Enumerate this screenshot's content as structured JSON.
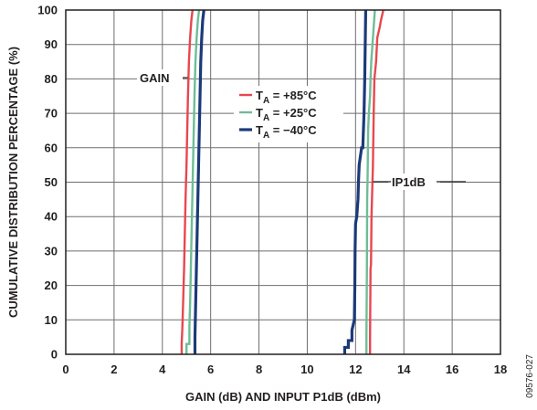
{
  "chart_data": {
    "type": "line",
    "xlabel": "GAIN (dB) AND INPUT P1dB (dBm)",
    "ylabel": "CUMULATIVE DISTRIBUTION PERCENTAGE (%)",
    "xlim": [
      0,
      18
    ],
    "ylim": [
      0,
      100
    ],
    "x_ticks": [
      "0",
      "2",
      "4",
      "6",
      "8",
      "10",
      "12",
      "14",
      "16",
      "18"
    ],
    "y_ticks": [
      "0",
      "10",
      "20",
      "30",
      "40",
      "50",
      "60",
      "70",
      "80",
      "90",
      "100"
    ],
    "grid": true,
    "legend_position": "center",
    "annotations": [
      "GAIN",
      "IP1dB"
    ],
    "figure_id": "09576-027",
    "legend": [
      {
        "sub": "A",
        "value": " = +85°C",
        "color": "#e8474f"
      },
      {
        "sub": "A",
        "value": " = +25°C",
        "color": "#6ebd96"
      },
      {
        "sub": "A",
        "value": " = −40°C",
        "color": "#1b3a78"
      }
    ],
    "series": [
      {
        "group": "gain",
        "color": "#e8474f",
        "points": [
          [
            4.8,
            0
          ],
          [
            4.8,
            3
          ],
          [
            4.83,
            8
          ],
          [
            4.86,
            15
          ],
          [
            4.9,
            25
          ],
          [
            4.93,
            35
          ],
          [
            4.96,
            45
          ],
          [
            5.0,
            55
          ],
          [
            5.03,
            65
          ],
          [
            5.06,
            75
          ],
          [
            5.1,
            85
          ],
          [
            5.15,
            92
          ],
          [
            5.2,
            97
          ],
          [
            5.25,
            100
          ]
        ]
      },
      {
        "group": "gain",
        "color": "#6ebd96",
        "points": [
          [
            5.0,
            0
          ],
          [
            5.0,
            3
          ],
          [
            5.12,
            3
          ],
          [
            5.12,
            8
          ],
          [
            5.15,
            15
          ],
          [
            5.18,
            25
          ],
          [
            5.21,
            35
          ],
          [
            5.24,
            45
          ],
          [
            5.27,
            55
          ],
          [
            5.3,
            65
          ],
          [
            5.33,
            75
          ],
          [
            5.37,
            85
          ],
          [
            5.42,
            92
          ],
          [
            5.47,
            97
          ],
          [
            5.52,
            100
          ]
        ]
      },
      {
        "group": "gain",
        "color": "#1b3a78",
        "points": [
          [
            5.35,
            0
          ],
          [
            5.35,
            5
          ],
          [
            5.38,
            15
          ],
          [
            5.41,
            25
          ],
          [
            5.44,
            35
          ],
          [
            5.47,
            45
          ],
          [
            5.5,
            55
          ],
          [
            5.53,
            65
          ],
          [
            5.56,
            75
          ],
          [
            5.59,
            85
          ],
          [
            5.63,
            92
          ],
          [
            5.67,
            97
          ],
          [
            5.72,
            100
          ]
        ]
      },
      {
        "group": "ip1db",
        "color": "#e8474f",
        "points": [
          [
            12.6,
            0
          ],
          [
            12.6,
            5
          ],
          [
            12.62,
            25
          ],
          [
            12.64,
            26
          ],
          [
            12.66,
            40
          ],
          [
            12.7,
            50
          ],
          [
            12.72,
            55
          ],
          [
            12.75,
            70
          ],
          [
            12.78,
            80
          ],
          [
            12.85,
            85
          ],
          [
            12.9,
            92
          ],
          [
            13.0,
            95
          ],
          [
            13.05,
            97
          ],
          [
            13.15,
            100
          ]
        ]
      },
      {
        "group": "ip1db",
        "color": "#6ebd96",
        "points": [
          [
            12.45,
            0
          ],
          [
            12.45,
            5
          ],
          [
            12.47,
            25
          ],
          [
            12.48,
            45
          ],
          [
            12.5,
            52
          ],
          [
            12.52,
            65
          ],
          [
            12.55,
            70
          ],
          [
            12.6,
            75
          ],
          [
            12.62,
            80
          ],
          [
            12.65,
            85
          ],
          [
            12.7,
            90
          ],
          [
            12.75,
            95
          ],
          [
            12.8,
            100
          ]
        ]
      },
      {
        "group": "ip1db",
        "color": "#1b3a78",
        "points": [
          [
            11.55,
            0
          ],
          [
            11.55,
            2
          ],
          [
            11.7,
            2
          ],
          [
            11.7,
            4
          ],
          [
            11.85,
            4
          ],
          [
            11.85,
            7
          ],
          [
            11.95,
            10
          ],
          [
            11.97,
            20
          ],
          [
            11.98,
            30
          ],
          [
            12.0,
            38
          ],
          [
            12.05,
            40
          ],
          [
            12.1,
            45
          ],
          [
            12.12,
            50
          ],
          [
            12.15,
            55
          ],
          [
            12.25,
            60
          ],
          [
            12.3,
            60
          ],
          [
            12.35,
            70
          ],
          [
            12.38,
            80
          ],
          [
            12.4,
            90
          ],
          [
            12.42,
            100
          ]
        ]
      }
    ]
  }
}
